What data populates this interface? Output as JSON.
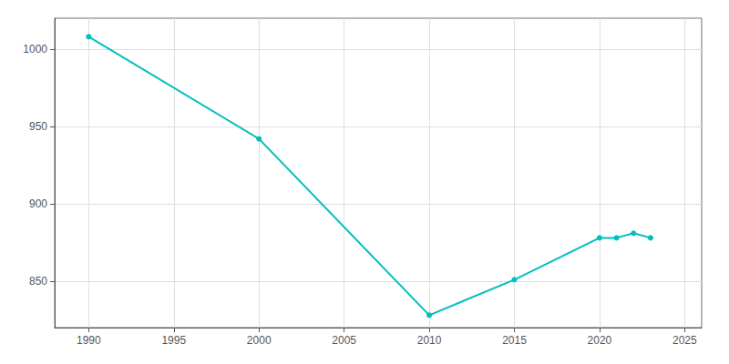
{
  "chart_data": {
    "type": "line",
    "x": [
      1990,
      2000,
      2010,
      2015,
      2020,
      2021,
      2022,
      2023
    ],
    "values": [
      1008,
      942,
      828,
      851,
      878,
      878,
      881,
      878
    ],
    "color": "#00BFBF",
    "marker": "circle",
    "xlim": [
      1988,
      2026
    ],
    "ylim": [
      820,
      1020
    ],
    "xticks": [
      1990,
      1995,
      2000,
      2005,
      2010,
      2015,
      2020,
      2025
    ],
    "yticks": [
      850,
      900,
      950,
      1000
    ],
    "grid": true
  }
}
